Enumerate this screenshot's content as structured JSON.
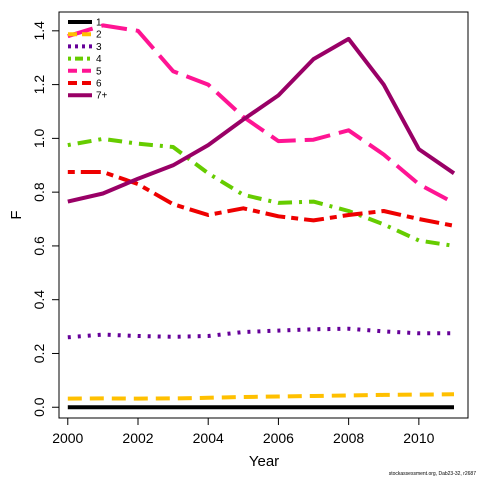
{
  "chart_data": {
    "type": "line",
    "xlabel": "Year",
    "ylabel": "F",
    "xlim": [
      1999.75,
      2011.4
    ],
    "ylim": [
      -0.04,
      1.47
    ],
    "x_ticks": [
      2000,
      2002,
      2004,
      2006,
      2008,
      2010
    ],
    "y_ticks": [
      0.0,
      0.2,
      0.4,
      0.6,
      0.8,
      1.0,
      1.2,
      1.4
    ],
    "y_tick_labels": [
      "0.0",
      "0.2",
      "0.4",
      "0.6",
      "0.8",
      "1.0",
      "1.2",
      "1.4"
    ],
    "grid": false,
    "legend_position": "top-left",
    "x": [
      2000,
      2001,
      2002,
      2003,
      2004,
      2005,
      2006,
      2007,
      2008,
      2009,
      2010,
      2011
    ],
    "series": [
      {
        "name": "1",
        "color": "#000000",
        "dash": "solid",
        "values": [
          0.0,
          0.0,
          0.0,
          0.0,
          0.0,
          0.0,
          0.0,
          0.0,
          0.0,
          0.0,
          0.0,
          0.0
        ]
      },
      {
        "name": "2",
        "color": "#FFC000",
        "dash": "dashed",
        "values": [
          0.032,
          0.033,
          0.032,
          0.033,
          0.035,
          0.038,
          0.04,
          0.042,
          0.044,
          0.046,
          0.047,
          0.048
        ]
      },
      {
        "name": "3",
        "color": "#660099",
        "dash": "dotted",
        "values": [
          0.26,
          0.27,
          0.265,
          0.262,
          0.265,
          0.28,
          0.285,
          0.29,
          0.292,
          0.282,
          0.275,
          0.275
        ]
      },
      {
        "name": "4",
        "color": "#66CC00",
        "dash": "dotdash",
        "values": [
          0.975,
          0.998,
          0.98,
          0.968,
          0.87,
          0.79,
          0.76,
          0.765,
          0.73,
          0.68,
          0.62,
          0.6
        ]
      },
      {
        "name": "5",
        "color": "#FF1493",
        "dash": "longdash",
        "values": [
          1.38,
          1.42,
          1.4,
          1.25,
          1.2,
          1.08,
          0.99,
          0.995,
          1.03,
          0.94,
          0.83,
          0.76
        ]
      },
      {
        "name": "6",
        "color": "#EE0000",
        "dash": "twodash",
        "values": [
          0.875,
          0.875,
          0.83,
          0.755,
          0.715,
          0.74,
          0.71,
          0.695,
          0.715,
          0.73,
          0.7,
          0.675
        ]
      },
      {
        "name": "7+",
        "color": "#990066",
        "dash": "solid",
        "values": [
          0.765,
          0.795,
          0.85,
          0.9,
          0.975,
          1.07,
          1.16,
          1.295,
          1.37,
          1.2,
          0.96,
          0.87
        ]
      }
    ]
  },
  "footnote": "stockassessment.org, Dab23-32, r2687"
}
